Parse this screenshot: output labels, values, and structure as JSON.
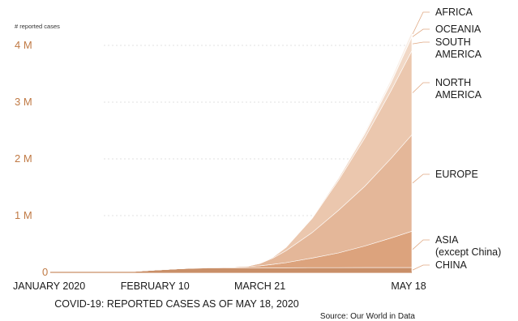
{
  "chart_data": {
    "type": "area",
    "stacked": true,
    "ylabel": "# reported cases",
    "y_ticks": [
      {
        "value": 0,
        "label": "0"
      },
      {
        "value": 1000000,
        "label": "1 M"
      },
      {
        "value": 2000000,
        "label": "2 M"
      },
      {
        "value": 3000000,
        "label": "3 M"
      },
      {
        "value": 4000000,
        "label": "4 M"
      }
    ],
    "ylim": [
      0,
      4600000
    ],
    "grid": "dotted horizontal",
    "x_ticks": [
      {
        "day": 0,
        "label": "JANUARY 2020"
      },
      {
        "day": 40,
        "label": "FEBRUARY 10"
      },
      {
        "day": 80,
        "label": "MARCH 21"
      },
      {
        "day": 138,
        "label": "MAY 18"
      }
    ],
    "x": [
      0,
      20,
      30,
      40,
      50,
      60,
      70,
      75,
      80,
      85,
      90,
      100,
      110,
      120,
      130,
      138
    ],
    "series": [
      {
        "name": "CHINA",
        "color": "#c98f68",
        "values": [
          0,
          2000,
          9800,
          40000,
          64000,
          79000,
          80500,
          81000,
          81300,
          81600,
          82000,
          82600,
          83300,
          83900,
          84000,
          84000
        ]
      },
      {
        "name": "ASIA\n(except China)",
        "color": "#dca37d",
        "values": [
          0,
          0,
          100,
          300,
          1000,
          5000,
          12000,
          20000,
          35000,
          60000,
          90000,
          170000,
          260000,
          380000,
          520000,
          640000
        ]
      },
      {
        "name": "EUROPE",
        "color": "#e4b799",
        "values": [
          0,
          0,
          0,
          0,
          20,
          500,
          2000,
          8000,
          40000,
          110000,
          210000,
          450000,
          750000,
          1050000,
          1400000,
          1700000
        ]
      },
      {
        "name": "NORTH\nAMERICA",
        "color": "#ebc7ae",
        "values": [
          0,
          0,
          0,
          0,
          10,
          50,
          100,
          500,
          2000,
          15000,
          60000,
          250000,
          530000,
          850000,
          1190000,
          1480000
        ]
      },
      {
        "name": "SOUTH\nAMERICA",
        "color": "#f1d8c6",
        "values": [
          0,
          0,
          0,
          0,
          0,
          0,
          10,
          30,
          400,
          2000,
          5000,
          14000,
          35000,
          70000,
          140000,
          245000
        ]
      },
      {
        "name": "OCEANIA",
        "color": "#f6e6da",
        "values": [
          0,
          0,
          0,
          0,
          0,
          0,
          20,
          100,
          500,
          1500,
          3000,
          5500,
          6800,
          7300,
          7700,
          8000
        ]
      },
      {
        "name": "AFRICA",
        "color": "#f9eee6",
        "values": [
          0,
          0,
          0,
          0,
          0,
          1,
          5,
          30,
          200,
          1000,
          2500,
          7000,
          16000,
          28000,
          52000,
          85000
        ]
      }
    ],
    "annotations": {
      "caption": "COVID-19: REPORTED CASES AS OF MAY 18, 2020",
      "source": "Source: Our World in Data"
    }
  }
}
